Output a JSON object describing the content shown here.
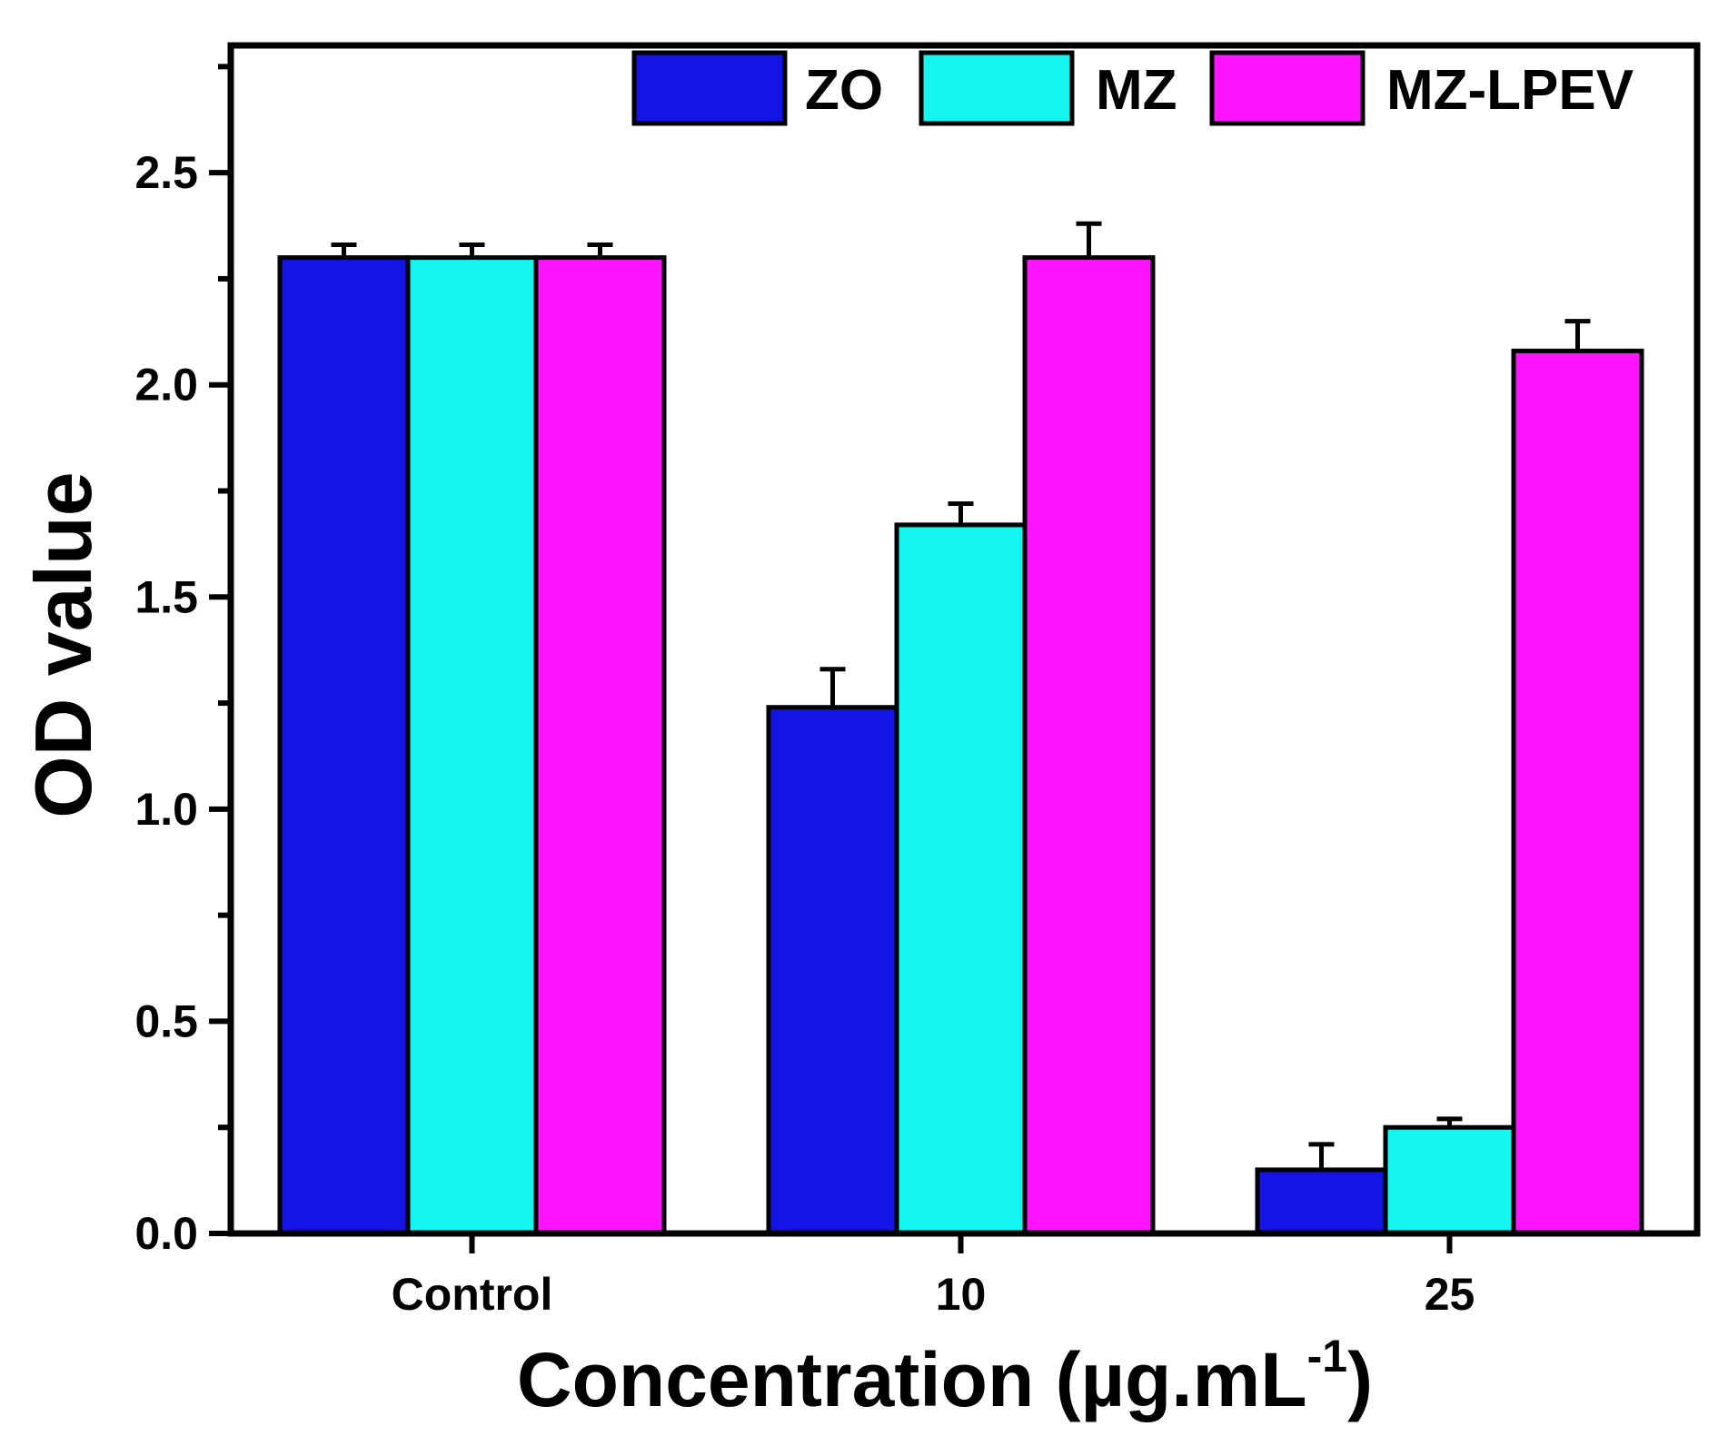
{
  "chart_data": {
    "type": "bar",
    "title": "",
    "xlabel": "Concentration (µg.mL",
    "xlabel_superscript": "-1",
    "xlabel_close": ")",
    "ylabel": "OD value",
    "ylim": [
      0,
      2.8
    ],
    "yticks": [
      0.0,
      0.5,
      1.0,
      1.5,
      2.0,
      2.5
    ],
    "ytick_labels": [
      "0.0",
      "0.5",
      "1.0",
      "1.5",
      "2.0",
      "2.5"
    ],
    "categories": [
      "Control",
      "10",
      "25"
    ],
    "series": [
      {
        "name": "ZO",
        "color": "#1414e6",
        "values": [
          2.3,
          1.24,
          0.15
        ],
        "errors": [
          0.03,
          0.09,
          0.06
        ]
      },
      {
        "name": "MZ",
        "color": "#14f5f0",
        "values": [
          2.3,
          1.67,
          0.25
        ],
        "errors": [
          0.03,
          0.05,
          0.02
        ]
      },
      {
        "name": "MZ-LPEV",
        "color": "#ff14ff",
        "values": [
          2.3,
          2.3,
          2.08
        ],
        "errors": [
          0.03,
          0.08,
          0.07
        ]
      }
    ],
    "legend_position": "top-right",
    "grid": false
  }
}
